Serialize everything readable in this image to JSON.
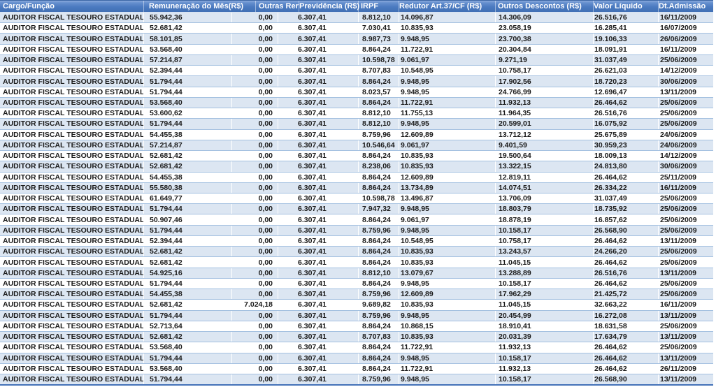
{
  "colors": {
    "header_gradient_top": "#8CABDC",
    "header_gradient_bottom": "#4170B5",
    "header_text": "#FFFFFF",
    "stripe_row": "#DCE6F2",
    "plain_row": "#FFFFFF",
    "row_border": "#A3C0E0",
    "outer_border": "#7FA5D1",
    "bottom_border": "#4472B8",
    "cell_text": "#1A1A1A"
  },
  "table": {
    "columns": [
      {
        "key": "cargo",
        "label": "Cargo/Função"
      },
      {
        "key": "remuneracao",
        "label": "Remuneração do Mês(R$)"
      },
      {
        "key": "outras",
        "label": "Outras Rer"
      },
      {
        "key": "previdencia",
        "label": "Previdência (R$)"
      },
      {
        "key": "irpf",
        "label": "IRPF"
      },
      {
        "key": "redutor",
        "label": "Redutor Art.37/CF (R$)"
      },
      {
        "key": "descontos",
        "label": "Outros Descontos (R$)"
      },
      {
        "key": "liquido",
        "label": "Valor Líquido"
      },
      {
        "key": "admissao",
        "label": "Dt.Admissão"
      }
    ],
    "rows": [
      [
        "AUDITOR FISCAL TESOURO ESTADUAL",
        "55.942,36",
        "0,00",
        "6.307,41",
        "8.812,10",
        "14.096,87",
        "14.306,09",
        "26.516,76",
        "16/11/2009"
      ],
      [
        "AUDITOR FISCAL TESOURO ESTADUAL",
        "52.681,42",
        "0,00",
        "6.307,41",
        "7.030,41",
        "10.835,93",
        "23.058,19",
        "16.285,41",
        "16/07/2009"
      ],
      [
        "AUDITOR FISCAL TESOURO ESTADUAL",
        "58.101,85",
        "0,00",
        "6.307,41",
        "8.987,73",
        "9.948,95",
        "23.700,38",
        "19.106,33",
        "26/06/2009"
      ],
      [
        "AUDITOR FISCAL TESOURO ESTADUAL",
        "53.568,40",
        "0,00",
        "6.307,41",
        "8.864,24",
        "11.722,91",
        "20.304,84",
        "18.091,91",
        "16/11/2009"
      ],
      [
        "AUDITOR FISCAL TESOURO ESTADUAL",
        "57.214,87",
        "0,00",
        "6.307,41",
        "10.598,78",
        "9.061,97",
        "9.271,19",
        "31.037,49",
        "25/06/2009"
      ],
      [
        "AUDITOR FISCAL TESOURO ESTADUAL",
        "52.394,44",
        "0,00",
        "6.307,41",
        "8.707,83",
        "10.548,95",
        "10.758,17",
        "26.621,03",
        "14/12/2009"
      ],
      [
        "AUDITOR FISCAL TESOURO ESTADUAL",
        "51.794,44",
        "0,00",
        "6.307,41",
        "8.864,24",
        "9.948,95",
        "17.902,56",
        "18.720,23",
        "30/06/2009"
      ],
      [
        "AUDITOR FISCAL TESOURO ESTADUAL",
        "51.794,44",
        "0,00",
        "6.307,41",
        "8.023,57",
        "9.948,95",
        "24.766,99",
        "12.696,47",
        "13/11/2009"
      ],
      [
        "AUDITOR FISCAL TESOURO ESTADUAL",
        "53.568,40",
        "0,00",
        "6.307,41",
        "8.864,24",
        "11.722,91",
        "11.932,13",
        "26.464,62",
        "25/06/2009"
      ],
      [
        "AUDITOR FISCAL TESOURO ESTADUAL",
        "53.600,62",
        "0,00",
        "6.307,41",
        "8.812,10",
        "11.755,13",
        "11.964,35",
        "26.516,76",
        "25/06/2009"
      ],
      [
        "AUDITOR FISCAL TESOURO ESTADUAL",
        "51.794,44",
        "0,00",
        "6.307,41",
        "8.812,10",
        "9.948,95",
        "20.599,01",
        "16.075,92",
        "25/06/2009"
      ],
      [
        "AUDITOR FISCAL TESOURO ESTADUAL",
        "54.455,38",
        "0,00",
        "6.307,41",
        "8.759,96",
        "12.609,89",
        "13.712,12",
        "25.675,89",
        "24/06/2009"
      ],
      [
        "AUDITOR FISCAL TESOURO ESTADUAL",
        "57.214,87",
        "0,00",
        "6.307,41",
        "10.546,64",
        "9.061,97",
        "9.401,59",
        "30.959,23",
        "24/06/2009"
      ],
      [
        "AUDITOR FISCAL TESOURO ESTADUAL",
        "52.681,42",
        "0,00",
        "6.307,41",
        "8.864,24",
        "10.835,93",
        "19.500,64",
        "18.009,13",
        "14/12/2009"
      ],
      [
        "AUDITOR FISCAL TESOURO ESTADUAL",
        "52.681,42",
        "0,00",
        "6.307,41",
        "8.238,06",
        "10.835,93",
        "13.322,15",
        "24.813,80",
        "30/06/2009"
      ],
      [
        "AUDITOR FISCAL TESOURO ESTADUAL",
        "54.455,38",
        "0,00",
        "6.307,41",
        "8.864,24",
        "12.609,89",
        "12.819,11",
        "26.464,62",
        "25/11/2009"
      ],
      [
        "AUDITOR FISCAL TESOURO ESTADUAL",
        "55.580,38",
        "0,00",
        "6.307,41",
        "8.864,24",
        "13.734,89",
        "14.074,51",
        "26.334,22",
        "16/11/2009"
      ],
      [
        "AUDITOR FISCAL TESOURO ESTADUAL",
        "61.649,77",
        "0,00",
        "6.307,41",
        "10.598,78",
        "13.496,87",
        "13.706,09",
        "31.037,49",
        "25/06/2009"
      ],
      [
        "AUDITOR FISCAL TESOURO ESTADUAL",
        "51.794,44",
        "0,00",
        "6.307,41",
        "7.947,32",
        "9.948,95",
        "18.803,79",
        "18.735,92",
        "25/06/2009"
      ],
      [
        "AUDITOR FISCAL TESOURO ESTADUAL",
        "50.907,46",
        "0,00",
        "6.307,41",
        "8.864,24",
        "9.061,97",
        "18.878,19",
        "16.857,62",
        "25/06/2009"
      ],
      [
        "AUDITOR FISCAL TESOURO ESTADUAL",
        "51.794,44",
        "0,00",
        "6.307,41",
        "8.759,96",
        "9.948,95",
        "10.158,17",
        "26.568,90",
        "25/06/2009"
      ],
      [
        "AUDITOR FISCAL TESOURO ESTADUAL",
        "52.394,44",
        "0,00",
        "6.307,41",
        "8.864,24",
        "10.548,95",
        "10.758,17",
        "26.464,62",
        "13/11/2009"
      ],
      [
        "AUDITOR FISCAL TESOURO ESTADUAL",
        "52.681,42",
        "0,00",
        "6.307,41",
        "8.864,24",
        "10.835,93",
        "13.243,57",
        "24.266,20",
        "25/06/2009"
      ],
      [
        "AUDITOR FISCAL TESOURO ESTADUAL",
        "52.681,42",
        "0,00",
        "6.307,41",
        "8.864,24",
        "10.835,93",
        "11.045,15",
        "26.464,62",
        "25/06/2009"
      ],
      [
        "AUDITOR FISCAL TESOURO ESTADUAL",
        "54.925,16",
        "0,00",
        "6.307,41",
        "8.812,10",
        "13.079,67",
        "13.288,89",
        "26.516,76",
        "13/11/2009"
      ],
      [
        "AUDITOR FISCAL TESOURO ESTADUAL",
        "51.794,44",
        "0,00",
        "6.307,41",
        "8.864,24",
        "9.948,95",
        "10.158,17",
        "26.464,62",
        "25/06/2009"
      ],
      [
        "AUDITOR FISCAL TESOURO ESTADUAL",
        "54.455,38",
        "0,00",
        "6.307,41",
        "8.759,96",
        "12.609,89",
        "17.962,29",
        "21.425,72",
        "25/06/2009"
      ],
      [
        "AUDITOR FISCAL TESOURO ESTADUAL",
        "52.681,42",
        "7.024,18",
        "6.307,41",
        "9.689,82",
        "10.835,93",
        "11.045,15",
        "32.663,22",
        "16/11/2009"
      ],
      [
        "AUDITOR FISCAL TESOURO ESTADUAL",
        "51.794,44",
        "0,00",
        "6.307,41",
        "8.759,96",
        "9.948,95",
        "20.454,99",
        "16.272,08",
        "13/11/2009"
      ],
      [
        "AUDITOR FISCAL TESOURO ESTADUAL",
        "52.713,64",
        "0,00",
        "6.307,41",
        "8.864,24",
        "10.868,15",
        "18.910,41",
        "18.631,58",
        "25/06/2009"
      ],
      [
        "AUDITOR FISCAL TESOURO ESTADUAL",
        "52.681,42",
        "0,00",
        "6.307,41",
        "8.707,83",
        "10.835,93",
        "20.031,39",
        "17.634,79",
        "13/11/2009"
      ],
      [
        "AUDITOR FISCAL TESOURO ESTADUAL",
        "53.568,40",
        "0,00",
        "6.307,41",
        "8.864,24",
        "11.722,91",
        "11.932,13",
        "26.464,62",
        "25/06/2009"
      ],
      [
        "AUDITOR FISCAL TESOURO ESTADUAL",
        "51.794,44",
        "0,00",
        "6.307,41",
        "8.864,24",
        "9.948,95",
        "10.158,17",
        "26.464,62",
        "13/11/2009"
      ],
      [
        "AUDITOR FISCAL TESOURO ESTADUAL",
        "53.568,40",
        "0,00",
        "6.307,41",
        "8.864,24",
        "11.722,91",
        "11.932,13",
        "26.464,62",
        "26/11/2009"
      ],
      [
        "AUDITOR FISCAL TESOURO ESTADUAL",
        "51.794,44",
        "0,00",
        "6.307,41",
        "8.759,96",
        "9.948,95",
        "10.158,17",
        "26.568,90",
        "13/11/2009"
      ]
    ]
  }
}
